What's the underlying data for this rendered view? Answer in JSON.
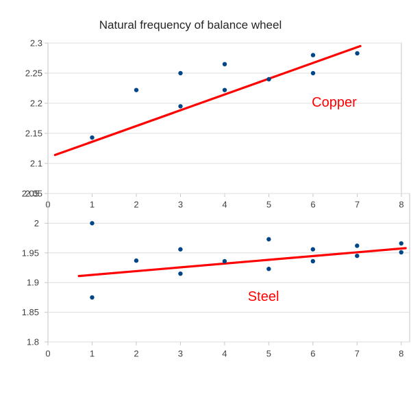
{
  "title": "Natural frequency of balance wheel",
  "styles": {
    "point_color": "#004586",
    "trend_color": "#ff0000",
    "annotation_color": "#ff0000",
    "grid_color": "#dcdcdc",
    "axis_color": "#c6c6c6",
    "tick_text_color": "#404040",
    "title_color": "#262626",
    "background": "#ffffff"
  },
  "chart_data": [
    {
      "type": "scatter",
      "series": "Copper",
      "points": [
        [
          1,
          2.143
        ],
        [
          2,
          2.222
        ],
        [
          3,
          2.25
        ],
        [
          3,
          2.195
        ],
        [
          4,
          2.265
        ],
        [
          4,
          2.222
        ],
        [
          5,
          2.24
        ],
        [
          6,
          2.28
        ],
        [
          6,
          2.25
        ],
        [
          7,
          2.283
        ]
      ],
      "trendline": {
        "x1": 0.16,
        "y1": 2.114,
        "x2": 7.07,
        "y2": 2.295
      },
      "xlim": [
        0,
        8
      ],
      "ylim": [
        2.05,
        2.3
      ],
      "xtick_values": [
        0,
        1,
        2,
        3,
        4,
        5,
        6,
        7,
        8
      ],
      "xtick_labels": [
        "0",
        "1",
        "2",
        "3",
        "4",
        "5",
        "6",
        "7",
        "8"
      ],
      "ytick_values": [
        2.3,
        2.25,
        2.2,
        2.15,
        2.1,
        2.05
      ],
      "ytick_labels": [
        "2.3",
        "2.25",
        "2.2",
        "2.15",
        "2.1",
        "2.05"
      ],
      "grid": "horizontal",
      "legend": "none",
      "annotation": {
        "text": "Copper",
        "x": 6.48,
        "y": 2.202
      }
    },
    {
      "type": "scatter",
      "series": "Steel",
      "points": [
        [
          1,
          2.0
        ],
        [
          1,
          1.875
        ],
        [
          2,
          1.937
        ],
        [
          3,
          1.956
        ],
        [
          3,
          1.915
        ],
        [
          4,
          1.936
        ],
        [
          5,
          1.973
        ],
        [
          5,
          1.923
        ],
        [
          6,
          1.956
        ],
        [
          6,
          1.936
        ],
        [
          7,
          1.962
        ],
        [
          7,
          1.945
        ],
        [
          8,
          1.966
        ],
        [
          8,
          1.951
        ]
      ],
      "trendline": {
        "x1": 0.7,
        "y1": 1.911,
        "x2": 8.1,
        "y2": 1.958
      },
      "xlim": [
        0,
        8.19
      ],
      "ylim": [
        1.8,
        2.05
      ],
      "xtick_values": [
        0,
        1,
        2,
        3,
        4,
        5,
        6,
        7,
        8
      ],
      "xtick_labels": [
        "0",
        "1",
        "2",
        "3",
        "4",
        "5",
        "6",
        "7",
        "8"
      ],
      "ytick_values": [
        2.05,
        2.0,
        1.95,
        1.9,
        1.85,
        1.8
      ],
      "ytick_labels": [
        "2.05",
        "2",
        "1.95",
        "1.9",
        "1.85",
        "1.8"
      ],
      "grid": "horizontal",
      "legend": "none",
      "annotation": {
        "text": "Steel",
        "x": 4.88,
        "y": 1.877
      }
    }
  ]
}
